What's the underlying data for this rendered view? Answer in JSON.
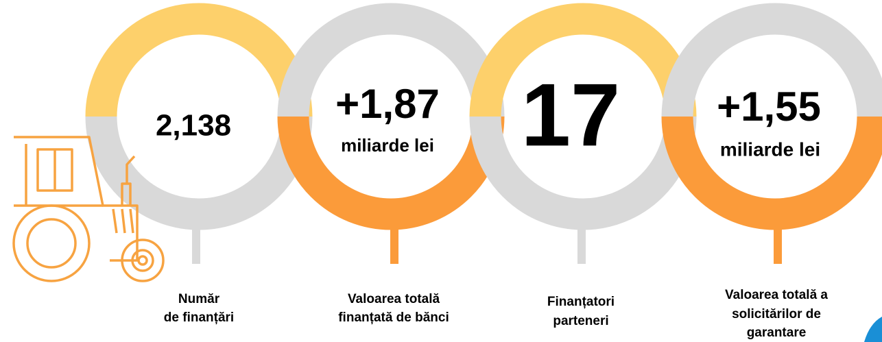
{
  "items": [
    {
      "value": "2,138",
      "label": [
        "Număr",
        "de finanțări"
      ]
    },
    {
      "value": "+1,87",
      "unit": "miliarde lei",
      "label": [
        "Valoarea totală",
        "finanțată de bănci"
      ]
    },
    {
      "value": "17",
      "label": [
        "Finanțatori",
        "parteneri"
      ]
    },
    {
      "value": "+1,55",
      "unit": "miliarde lei",
      "label": [
        "Valoarea totală a",
        "solicitărilor de",
        "garantare"
      ]
    }
  ]
}
